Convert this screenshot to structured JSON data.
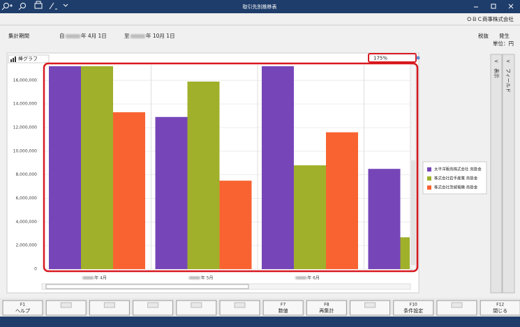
{
  "window": {
    "title": "取引先別推移表",
    "company": "ＯＢＣ商事株式会社"
  },
  "header": {
    "period_label": "集計期間",
    "from_prefix": "自",
    "from_date": "年  4月 1日",
    "to_prefix": "至",
    "to_date": "年 10月 1日",
    "tax": "税抜",
    "basis": "発生",
    "unit": "単位：円"
  },
  "toolbar": {
    "chart_type": "棒グラフ",
    "zoom": "175%"
  },
  "side_tabs": [
    "表示",
    "フィールド"
  ],
  "function_keys": [
    {
      "key": "F1",
      "label": "ヘルプ"
    },
    null,
    null,
    null,
    null,
    null,
    {
      "key": "F7",
      "label": "数値"
    },
    {
      "key": "F8",
      "label": "再集計"
    },
    null,
    {
      "key": "F10",
      "label": "条件設定"
    },
    null,
    {
      "key": "F12",
      "label": "閉じる"
    }
  ],
  "chart_data": {
    "type": "bar",
    "categories": [
      "年  4月",
      "年  5月",
      "年  6月",
      null
    ],
    "series": [
      {
        "name": "太平洋販売株式会社 売掛金",
        "color": "#7646b8",
        "values": [
          17200000,
          12900000,
          17200000,
          8500000
        ]
      },
      {
        "name": "株式会社岩手産業 売掛金",
        "color": "#a0b02a",
        "values": [
          17200000,
          15900000,
          8800000,
          2700000
        ]
      },
      {
        "name": "株式会社茨城電機 売掛金",
        "color": "#f96332",
        "values": [
          13300000,
          7500000,
          11600000,
          null
        ]
      }
    ],
    "ylim": [
      0,
      17200000
    ],
    "yticks": [
      0,
      {
        "value": 2000000,
        "label": "2,000,000"
      },
      {
        "value": 4000000,
        "label": "4,000,000"
      },
      {
        "value": 6000000,
        "label": "6,000,000"
      },
      {
        "value": 8000000,
        "label": "8,000,000"
      },
      {
        "value": 10000000,
        "label": "10,000,000"
      },
      {
        "value": 12000000,
        "label": "12,000,000"
      },
      {
        "value": 14000000,
        "label": "14,000,000"
      },
      {
        "value": 16000000,
        "label": "16,000,000"
      }
    ],
    "grid": true,
    "legend": "right"
  }
}
